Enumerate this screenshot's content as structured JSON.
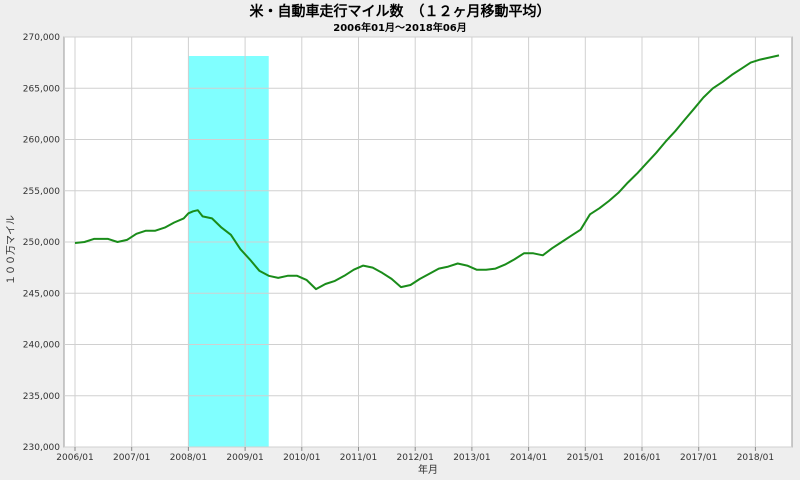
{
  "chart_data": {
    "type": "line",
    "title": "米・自動車走行マイル数　（１２ヶ月移動平均）",
    "subtitle": "2006年01月～2018年06月",
    "xlabel": "年月",
    "ylabel": "１００万マイル",
    "ylim": [
      230000,
      270000
    ],
    "yticks": [
      "230,000",
      "235,000",
      "240,000",
      "245,000",
      "250,000",
      "255,000",
      "260,000",
      "265,000",
      "270,000"
    ],
    "xticks": [
      "2006/01",
      "2007/01",
      "2008/01",
      "2009/01",
      "2010/01",
      "2011/01",
      "2012/01",
      "2013/01",
      "2014/01",
      "2015/01",
      "2016/01",
      "2017/01",
      "2018/01"
    ],
    "grid": true,
    "series_color": "#1a8c1a",
    "shade_color": "#80ffff",
    "shaded_period": [
      "2008/01",
      "2009/06"
    ],
    "points": [
      [
        "2006/01",
        249900
      ],
      [
        "2006/03",
        250000
      ],
      [
        "2006/05",
        250300
      ],
      [
        "2006/08",
        250300
      ],
      [
        "2006/10",
        250000
      ],
      [
        "2006/12",
        250200
      ],
      [
        "2007/02",
        250800
      ],
      [
        "2007/04",
        251100
      ],
      [
        "2007/06",
        251100
      ],
      [
        "2007/08",
        251400
      ],
      [
        "2007/10",
        251900
      ],
      [
        "2007/12",
        252300
      ],
      [
        "2008/01",
        252800
      ],
      [
        "2008/02",
        253000
      ],
      [
        "2008/03",
        253100
      ],
      [
        "2008/04",
        252500
      ],
      [
        "2008/06",
        252300
      ],
      [
        "2008/08",
        251400
      ],
      [
        "2008/10",
        250700
      ],
      [
        "2008/12",
        249300
      ],
      [
        "2009/02",
        248300
      ],
      [
        "2009/04",
        247200
      ],
      [
        "2009/06",
        246700
      ],
      [
        "2009/08",
        246500
      ],
      [
        "2009/10",
        246700
      ],
      [
        "2009/12",
        246700
      ],
      [
        "2010/02",
        246300
      ],
      [
        "2010/04",
        245400
      ],
      [
        "2010/06",
        245900
      ],
      [
        "2010/08",
        246200
      ],
      [
        "2010/10",
        246700
      ],
      [
        "2010/12",
        247300
      ],
      [
        "2011/02",
        247700
      ],
      [
        "2011/04",
        247500
      ],
      [
        "2011/06",
        247000
      ],
      [
        "2011/08",
        246400
      ],
      [
        "2011/10",
        245600
      ],
      [
        "2011/12",
        245800
      ],
      [
        "2012/02",
        246400
      ],
      [
        "2012/04",
        246900
      ],
      [
        "2012/06",
        247400
      ],
      [
        "2012/08",
        247600
      ],
      [
        "2012/10",
        247900
      ],
      [
        "2012/12",
        247700
      ],
      [
        "2013/02",
        247300
      ],
      [
        "2013/04",
        247300
      ],
      [
        "2013/06",
        247400
      ],
      [
        "2013/08",
        247800
      ],
      [
        "2013/10",
        248300
      ],
      [
        "2013/12",
        248900
      ],
      [
        "2014/02",
        248900
      ],
      [
        "2014/04",
        248700
      ],
      [
        "2014/06",
        249400
      ],
      [
        "2014/08",
        250000
      ],
      [
        "2014/10",
        250600
      ],
      [
        "2014/12",
        251200
      ],
      [
        "2015/02",
        252700
      ],
      [
        "2015/04",
        253300
      ],
      [
        "2015/06",
        254000
      ],
      [
        "2015/08",
        254800
      ],
      [
        "2015/10",
        255800
      ],
      [
        "2015/12",
        256700
      ],
      [
        "2016/02",
        257700
      ],
      [
        "2016/04",
        258700
      ],
      [
        "2016/06",
        259800
      ],
      [
        "2016/08",
        260800
      ],
      [
        "2016/10",
        261900
      ],
      [
        "2016/12",
        263000
      ],
      [
        "2017/02",
        264100
      ],
      [
        "2017/04",
        265000
      ],
      [
        "2017/06",
        265600
      ],
      [
        "2017/08",
        266300
      ],
      [
        "2017/10",
        266900
      ],
      [
        "2017/12",
        267500
      ],
      [
        "2018/02",
        267800
      ],
      [
        "2018/04",
        268000
      ],
      [
        "2018/06",
        268200
      ]
    ]
  }
}
